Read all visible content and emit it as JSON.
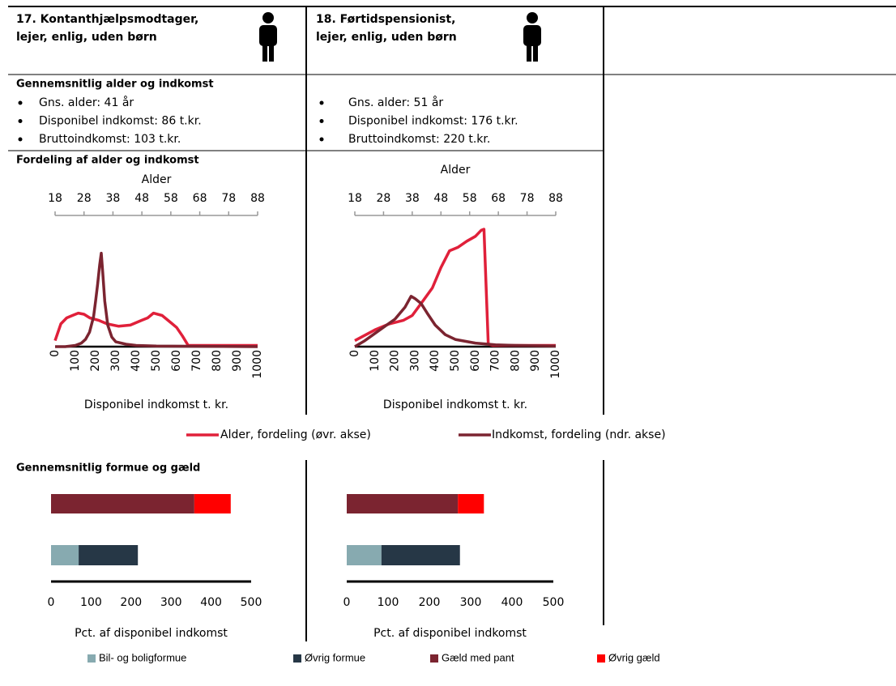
{
  "panels": [
    {
      "title_lines": [
        "17. Kontanthjælpsmodtager,",
        "lejer, enlig, uden børn"
      ],
      "avg_heading": "Gennemsnitlig alder og indkomst",
      "avg_items": [
        "Gns. alder: 41 år",
        "Disponibel indkomst: 86 t.kr.",
        "Bruttoindkomst: 103 t.kr."
      ],
      "dist_heading": "Fordeling af alder og indkomst",
      "wealth_heading": "Gennemsnitlig formue og gæld"
    },
    {
      "title_lines": [
        "18. Førtidspensionist,",
        "lejer, enlig, uden børn"
      ],
      "avg_items": [
        "Gns. alder: 51 år",
        "Disponibel indkomst: 176 t.kr.",
        "Bruttoindkomst: 220 t.kr."
      ]
    }
  ],
  "chart_data": [
    {
      "type": "line",
      "x_label": "Disponibel indkomst t. kr.",
      "x2_label": "Alder",
      "xlim": [
        0,
        1000
      ],
      "xticks": [
        0,
        100,
        200,
        300,
        400,
        500,
        600,
        700,
        800,
        900,
        1000
      ],
      "x2lim": [
        18,
        88
      ],
      "x2ticks": [
        18,
        28,
        38,
        48,
        58,
        68,
        78,
        88
      ],
      "ylim": [
        0,
        100
      ],
      "series": [
        {
          "name": "Alder, fordeling (øvr. akse)",
          "color": "#e0203a",
          "axis": "x2",
          "x": [
            18,
            20,
            22,
            24,
            26,
            28,
            30,
            33,
            36,
            40,
            44,
            48,
            50,
            52,
            55,
            58,
            60,
            62,
            64,
            66,
            70,
            75,
            80,
            88
          ],
          "values": [
            5,
            19,
            24,
            26,
            28,
            27,
            24,
            22,
            19,
            17,
            18,
            22,
            24,
            28,
            26,
            20,
            16,
            9,
            1,
            1,
            1,
            1,
            1,
            1
          ]
        },
        {
          "name": "Indkomst, fordeling (ndr. akse)",
          "color": "#7b2430",
          "x": [
            0,
            50,
            100,
            130,
            150,
            170,
            190,
            200,
            210,
            220,
            228,
            235,
            245,
            260,
            280,
            300,
            350,
            400,
            500,
            1000
          ],
          "values": [
            0,
            0,
            1,
            3,
            6,
            12,
            25,
            38,
            52,
            68,
            78,
            62,
            38,
            18,
            8,
            4,
            2,
            1,
            0.5,
            0
          ]
        }
      ]
    },
    {
      "type": "line",
      "x_label": "Disponibel indkomst t. kr.",
      "x2_label": "Alder",
      "xlim": [
        0,
        1000
      ],
      "xticks": [
        0,
        100,
        200,
        300,
        400,
        500,
        600,
        700,
        800,
        900,
        1000
      ],
      "x2lim": [
        18,
        88
      ],
      "x2ticks": [
        18,
        28,
        38,
        48,
        58,
        68,
        78,
        88
      ],
      "ylim": [
        0,
        100
      ],
      "series": [
        {
          "color": "#e0203a",
          "axis": "x2",
          "x": [
            18,
            25,
            30,
            35,
            38,
            42,
            45,
            48,
            51,
            54,
            57,
            60,
            62,
            63,
            64.5,
            66,
            70,
            75,
            80,
            88
          ],
          "values": [
            5,
            14,
            19,
            22,
            26,
            39,
            49,
            66,
            80,
            83,
            88,
            92,
            97,
            98,
            2,
            1,
            1,
            1,
            1,
            1
          ]
        },
        {
          "color": "#7b2430",
          "x": [
            0,
            50,
            100,
            150,
            200,
            250,
            280,
            300,
            330,
            360,
            400,
            450,
            500,
            600,
            700,
            800,
            1000
          ],
          "values": [
            0,
            5,
            11,
            17,
            23,
            33,
            42,
            40,
            36,
            28,
            18,
            10,
            6,
            3,
            1.5,
            1,
            0.5
          ]
        }
      ]
    },
    {
      "type": "bar",
      "orientation": "horizontal",
      "stacked": true,
      "x_label": "Pct. af disponibel indkomst",
      "xlim": [
        0,
        500
      ],
      "xticks": [
        0,
        100,
        200,
        300,
        400,
        500
      ],
      "categories": [
        null,
        null
      ],
      "series": [
        {
          "name": "Bil- og boligformue",
          "color": "#87aab0",
          "values": [
            null,
            69
          ]
        },
        {
          "name": "Øvrig formue",
          "color": "#263746",
          "values": [
            null,
            148
          ]
        },
        {
          "name": "Gæld med pant",
          "color": "#7b2430",
          "values": [
            358,
            null
          ]
        },
        {
          "name": "Øvrig gæld",
          "color": "#ff0000",
          "values": [
            91,
            null
          ]
        }
      ]
    },
    {
      "type": "bar",
      "orientation": "horizontal",
      "stacked": true,
      "x_label": "Pct. af disponibel indkomst",
      "xlim": [
        0,
        500
      ],
      "xticks": [
        0,
        100,
        200,
        300,
        400,
        500
      ],
      "categories": [
        null,
        null
      ],
      "series": [
        {
          "color": "#87aab0",
          "values": [
            null,
            84
          ]
        },
        {
          "color": "#263746",
          "values": [
            null,
            190
          ]
        },
        {
          "color": "#7b2430",
          "values": [
            269,
            null
          ]
        },
        {
          "color": "#ff0000",
          "values": [
            63,
            null
          ]
        }
      ]
    }
  ]
}
